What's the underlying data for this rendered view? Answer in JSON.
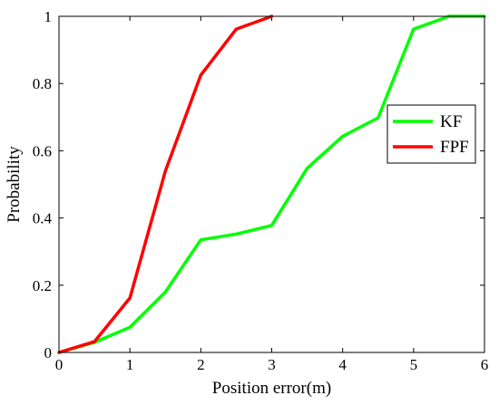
{
  "chart_data": {
    "type": "line",
    "title": "",
    "xlabel": "Position error(m)",
    "ylabel": "Probability",
    "xlim": [
      0,
      6
    ],
    "ylim": [
      0,
      1
    ],
    "xticks": [
      0,
      1,
      2,
      3,
      4,
      5,
      6
    ],
    "xtick_labels": [
      "0",
      "1",
      "2",
      "3",
      "4",
      "5",
      "6"
    ],
    "yticks": [
      0,
      0.2,
      0.4,
      0.6,
      0.8,
      1
    ],
    "ytick_labels": [
      "0",
      "0.2",
      "0.4",
      "0.6",
      "0.8",
      "1"
    ],
    "grid": false,
    "legend_position": "right",
    "series": [
      {
        "name": "KF",
        "color": "#00ff00",
        "x": [
          0,
          0.5,
          1,
          1.5,
          2,
          2.5,
          3,
          3.5,
          4,
          4.5,
          5,
          5.5,
          6
        ],
        "y": [
          0,
          0.03,
          0.075,
          0.18,
          0.335,
          0.352,
          0.378,
          0.548,
          0.643,
          0.698,
          0.962,
          1.0,
          1.0
        ]
      },
      {
        "name": "FPF",
        "color": "#ff0000",
        "x": [
          0,
          0.5,
          1,
          1.5,
          2,
          2.5,
          3
        ],
        "y": [
          0,
          0.032,
          0.162,
          0.54,
          0.825,
          0.962,
          1.0
        ]
      }
    ]
  }
}
